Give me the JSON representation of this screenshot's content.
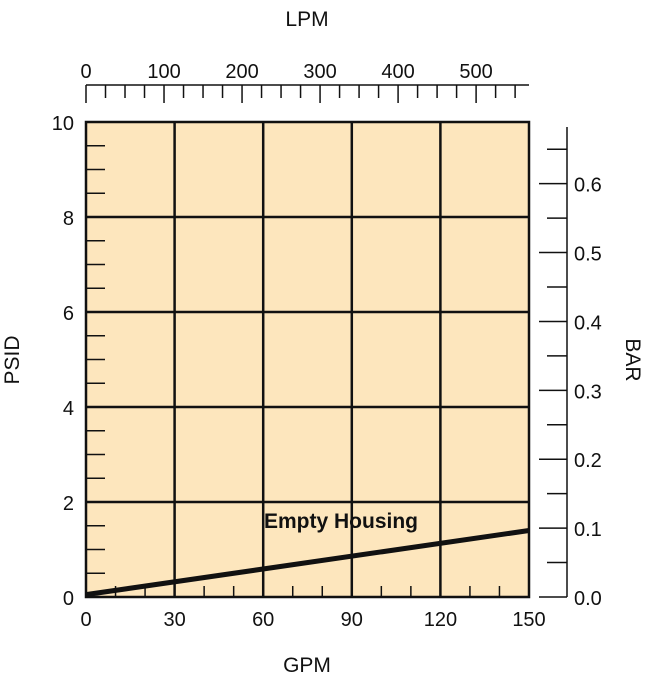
{
  "chart_data": {
    "type": "line",
    "xlabel": "GPM",
    "ylabel": "PSID",
    "x2label": "LPM",
    "y2label": "BAR",
    "xlim": [
      0,
      150
    ],
    "ylim": [
      0,
      10
    ],
    "x2lim": [
      0,
      567.8
    ],
    "y2lim": [
      0,
      0.6895
    ],
    "x_ticks": [
      "0",
      "30",
      "60",
      "90",
      "120",
      "150"
    ],
    "y_ticks": [
      "0",
      "2",
      "4",
      "6",
      "8",
      "10"
    ],
    "x2_ticks": [
      "0",
      "100",
      "200",
      "300",
      "400",
      "500"
    ],
    "y2_ticks": [
      "0.0",
      "0.1",
      "0.2",
      "0.3",
      "0.4",
      "0.5",
      "0.6"
    ],
    "grid": true,
    "series": [
      {
        "name": "Empty Housing",
        "x": [
          0,
          150
        ],
        "y": [
          0.05,
          1.4
        ]
      }
    ],
    "colors": {
      "plot_bg": "#fde6bd",
      "line": "#111111"
    }
  }
}
